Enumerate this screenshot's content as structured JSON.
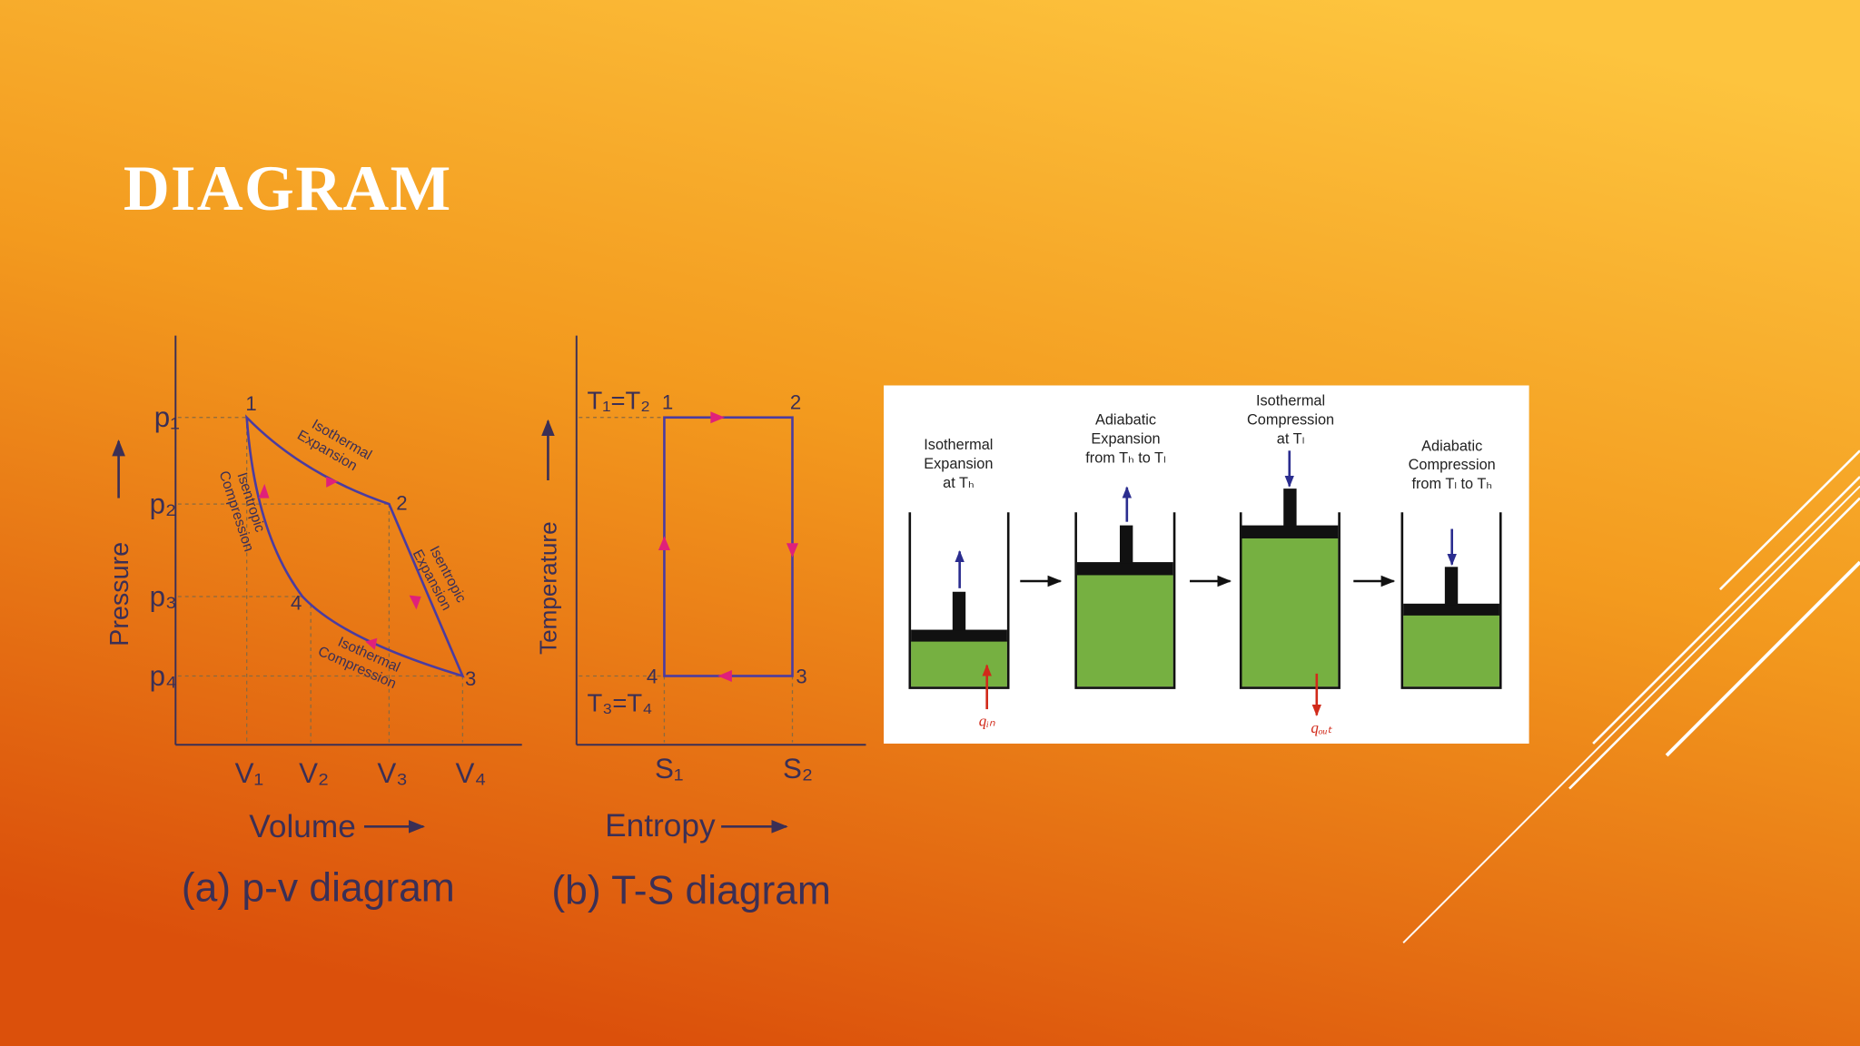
{
  "title": "DIAGRAM",
  "pv_diagram": {
    "y_axis_label": "Pressure",
    "x_axis_label": "Volume",
    "caption": "(a) p-v diagram",
    "pressure_labels": [
      "p₁",
      "p₂",
      "p₃",
      "p₄"
    ],
    "volume_labels": [
      "V₁",
      "V₂",
      "V₃",
      "V₄"
    ],
    "point_labels": [
      "1",
      "2",
      "3",
      "4"
    ],
    "process_labels": [
      [
        "Isothermal",
        "Expansion"
      ],
      [
        "Isentropic",
        "Expansion"
      ],
      [
        "Isothermal",
        "Compression"
      ],
      [
        "Isentropic",
        "Compression"
      ]
    ]
  },
  "ts_diagram": {
    "y_axis_label": "Temperature",
    "x_axis_label": "Entropy",
    "caption": "(b) T-S diagram",
    "temperature_labels": [
      "T₁=T₂",
      "T₃=T₄"
    ],
    "entropy_labels": [
      "S₁",
      "S₂"
    ],
    "point_labels": [
      "1",
      "2",
      "3",
      "4"
    ]
  },
  "piston_stages": {
    "stages": [
      [
        "Isothermal",
        "Expansion",
        "at Tₕ"
      ],
      [
        "Adiabatic",
        "Expansion",
        "from Tₕ to Tₗ"
      ],
      [
        "Isothermal",
        "Compression",
        "at Tₗ"
      ],
      [
        "Adiabatic",
        "Compression",
        "from Tₗ to Tₕ"
      ]
    ],
    "heat_in": "qᵢₙ",
    "heat_out": "qₒᵤₜ"
  }
}
